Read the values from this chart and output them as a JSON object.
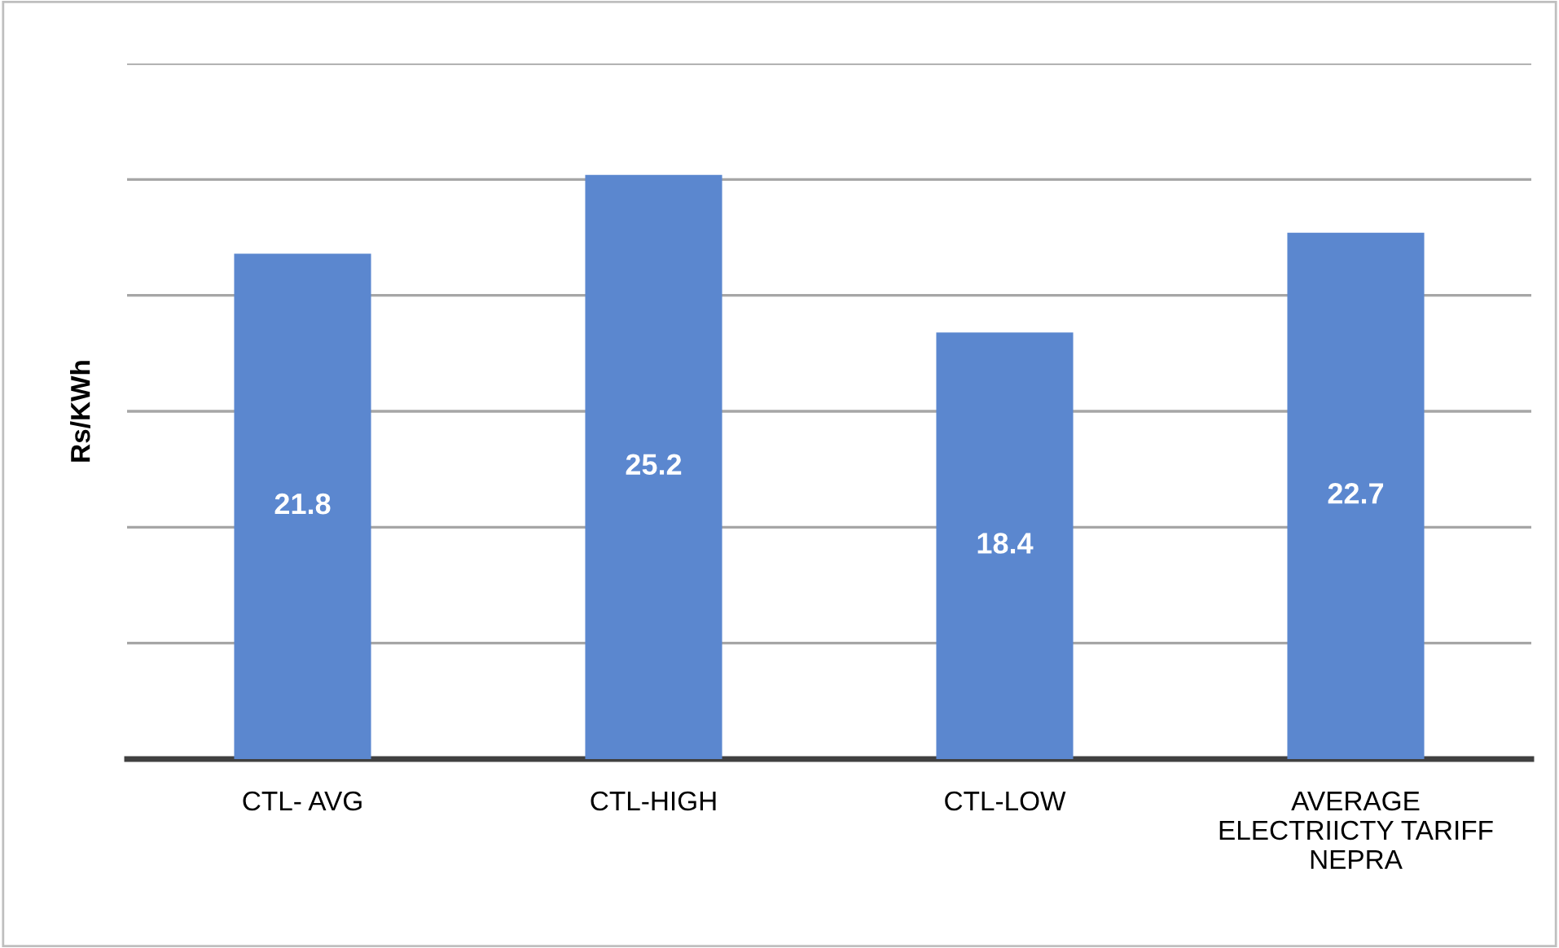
{
  "chart_data": {
    "type": "bar",
    "ylabel": "Rs/KWh",
    "categories": [
      "CTL- AVG",
      "CTL-HIGH",
      "CTL-LOW",
      "AVERAGE\nELECTRIICTY TARIFF\nNEPRA"
    ],
    "values": [
      21.8,
      25.2,
      18.4,
      22.7
    ],
    "color": "#5b87cf",
    "data_labels": true,
    "ylim": [
      0,
      30
    ],
    "yticks": [
      {
        "value": 0,
        "label": null
      },
      {
        "value": 5,
        "label": null
      },
      {
        "value": 10,
        "label": null
      },
      {
        "value": 15,
        "label": null
      },
      {
        "value": 20,
        "label": null
      },
      {
        "value": 25,
        "label": null
      },
      {
        "value": 30,
        "label": null
      }
    ],
    "grid": "y",
    "tick_labels": "x"
  }
}
